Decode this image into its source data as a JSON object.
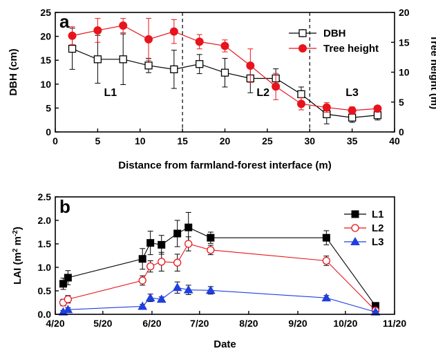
{
  "chart_data": [
    {
      "panel": "a",
      "type": "line",
      "xlabel": "Distance from farmland-forest interface (m)",
      "ylabel": "DBH (cm)",
      "y2label": "Tree height (m)",
      "xlim": [
        0,
        40
      ],
      "ylim": [
        0,
        25
      ],
      "y2lim": [
        0,
        20
      ],
      "xticks": [
        "0",
        "5",
        "10",
        "15",
        "20",
        "25",
        "30",
        "35",
        "40"
      ],
      "yticks": [
        "0",
        "5",
        "10",
        "15",
        "20",
        "25"
      ],
      "y2ticks": [
        "0",
        "5",
        "10",
        "15",
        "20"
      ],
      "grid": false,
      "legend_position": "top-right",
      "zone_boundaries": [
        15,
        30
      ],
      "annotations": [
        {
          "text": "L1",
          "x": 6.5,
          "y": 7.5
        },
        {
          "text": "L2",
          "x": 24.5,
          "y": 7.5
        },
        {
          "text": "L3",
          "x": 35,
          "y": 7.5
        }
      ],
      "series": [
        {
          "name": "DBH",
          "axis": "left",
          "color": "#000000",
          "marker": "open-square",
          "x": [
            2,
            5,
            8,
            11,
            14,
            17,
            20,
            23,
            26,
            29,
            32,
            35,
            38
          ],
          "y": [
            17.4,
            15.2,
            15.2,
            13.9,
            13.1,
            14.2,
            12.4,
            11.2,
            11.2,
            7.9,
            3.7,
            3.0,
            3.5
          ],
          "err": [
            4.3,
            5.0,
            5.3,
            1.5,
            4.0,
            2.0,
            3.0,
            3.0,
            2.0,
            1.5,
            2.0,
            1.0,
            1.0
          ]
        },
        {
          "name": "Tree height",
          "axis": "right",
          "color": "#e8141c",
          "marker": "filled-circle",
          "x": [
            2,
            5,
            8,
            11,
            14,
            17,
            20,
            23,
            26,
            29,
            32,
            35,
            38
          ],
          "y": [
            16.1,
            17.0,
            17.8,
            15.5,
            16.8,
            15.1,
            14.4,
            11.1,
            7.6,
            4.7,
            4.1,
            3.6,
            3.9
          ],
          "err": [
            1.5,
            2.0,
            1.2,
            3.5,
            2.0,
            1.2,
            1.0,
            2.8,
            2.2,
            1.0,
            0.8,
            0.6,
            0.4
          ]
        }
      ]
    },
    {
      "panel": "b",
      "type": "line",
      "xlabel": "Date",
      "ylabel": "LAI (m",
      "ylabel_super": "2",
      "ylabel_mid": " m",
      "ylabel_super2": "-2",
      "ylabel_end": ")",
      "xlim": [
        0,
        210
      ],
      "ylim": [
        0,
        2.5
      ],
      "xticks": [
        {
          "label": "4/20",
          "x": 0
        },
        {
          "label": "5/20",
          "x": 30
        },
        {
          "label": "6/20",
          "x": 61
        },
        {
          "label": "7/20",
          "x": 91
        },
        {
          "label": "8/20",
          "x": 122
        },
        {
          "label": "9/20",
          "x": 153
        },
        {
          "label": "10/20",
          "x": 183
        },
        {
          "label": "11/20",
          "x": 214
        }
      ],
      "yticks": [
        "0.0",
        "0.5",
        "1.0",
        "1.5",
        "2.0",
        "2.5"
      ],
      "grid": false,
      "legend_position": "top-right",
      "series": [
        {
          "name": "L1",
          "color": "#000000",
          "marker": "filled-square",
          "x": [
            5,
            8,
            55,
            60,
            67,
            77,
            84,
            98,
            171,
            202
          ],
          "y": [
            0.65,
            0.78,
            1.18,
            1.52,
            1.48,
            1.72,
            1.85,
            1.63,
            1.63,
            0.18
          ],
          "err": [
            0.12,
            0.15,
            0.22,
            0.25,
            0.2,
            0.28,
            0.32,
            0.12,
            0.15,
            0.05
          ]
        },
        {
          "name": "L2",
          "color": "#e8141c",
          "marker": "open-circle",
          "x": [
            5,
            8,
            55,
            60,
            67,
            77,
            84,
            98,
            171,
            202
          ],
          "y": [
            0.25,
            0.32,
            0.72,
            1.02,
            1.12,
            1.1,
            1.5,
            1.37,
            1.14,
            0.08
          ],
          "err": [
            0.07,
            0.08,
            0.1,
            0.12,
            0.2,
            0.18,
            0.15,
            0.1,
            0.1,
            0.03
          ]
        },
        {
          "name": "L3",
          "color": "#1f3fe0",
          "marker": "filled-triangle",
          "x": [
            5,
            8,
            55,
            60,
            67,
            77,
            84,
            98,
            171,
            202
          ],
          "y": [
            0.05,
            0.1,
            0.17,
            0.35,
            0.32,
            0.57,
            0.52,
            0.51,
            0.35,
            0.05
          ],
          "err": [
            0.03,
            0.04,
            0.04,
            0.08,
            0.05,
            0.12,
            0.1,
            0.08,
            0.05,
            0.02
          ]
        }
      ]
    }
  ]
}
